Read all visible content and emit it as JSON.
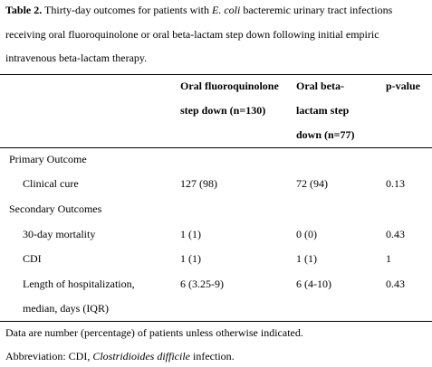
{
  "caption": {
    "label": "Table 2.",
    "line1_pre": "Thirty-day outcomes for patients with ",
    "line1_organism": "E. coli",
    "line1_post": " bacteremic urinary tract infections",
    "line2": "receiving oral fluoroquinolone or oral beta-lactam step down following initial empiric",
    "line3": "intravenous beta-lactam therapy."
  },
  "header": {
    "col1_line1": "Oral fluoroquinolone",
    "col1_line2": "step down (n=130)",
    "col2_line1": "Oral beta-",
    "col2_line2": "lactam step",
    "col2_line3": "down (n=77)",
    "col3": "p-value"
  },
  "sections": {
    "primary": "Primary Outcome",
    "secondary": "Secondary Outcomes"
  },
  "rows": {
    "clinical_cure": {
      "label": "Clinical cure",
      "fq": "127 (98)",
      "bl": "72 (94)",
      "p": "0.13"
    },
    "mortality": {
      "label": "30-day mortality",
      "fq": "1 (1)",
      "bl": "0 (0)",
      "p": "0.43"
    },
    "cdi": {
      "label": "CDI",
      "fq": "1 (1)",
      "bl": "1 (1)",
      "p": "1"
    },
    "los": {
      "label_line1": "Length of hospitalization,",
      "label_line2": "median, days (IQR)",
      "fq": "6 (3.25-9)",
      "bl": "6 (4-10)",
      "p": "0.43"
    }
  },
  "footnotes": {
    "note1": "Data are number (percentage) of patients unless otherwise indicated.",
    "abbrev_pre": "Abbreviation: CDI, ",
    "abbrev_organism": "Clostridioides difficile",
    "abbrev_post": " infection."
  }
}
